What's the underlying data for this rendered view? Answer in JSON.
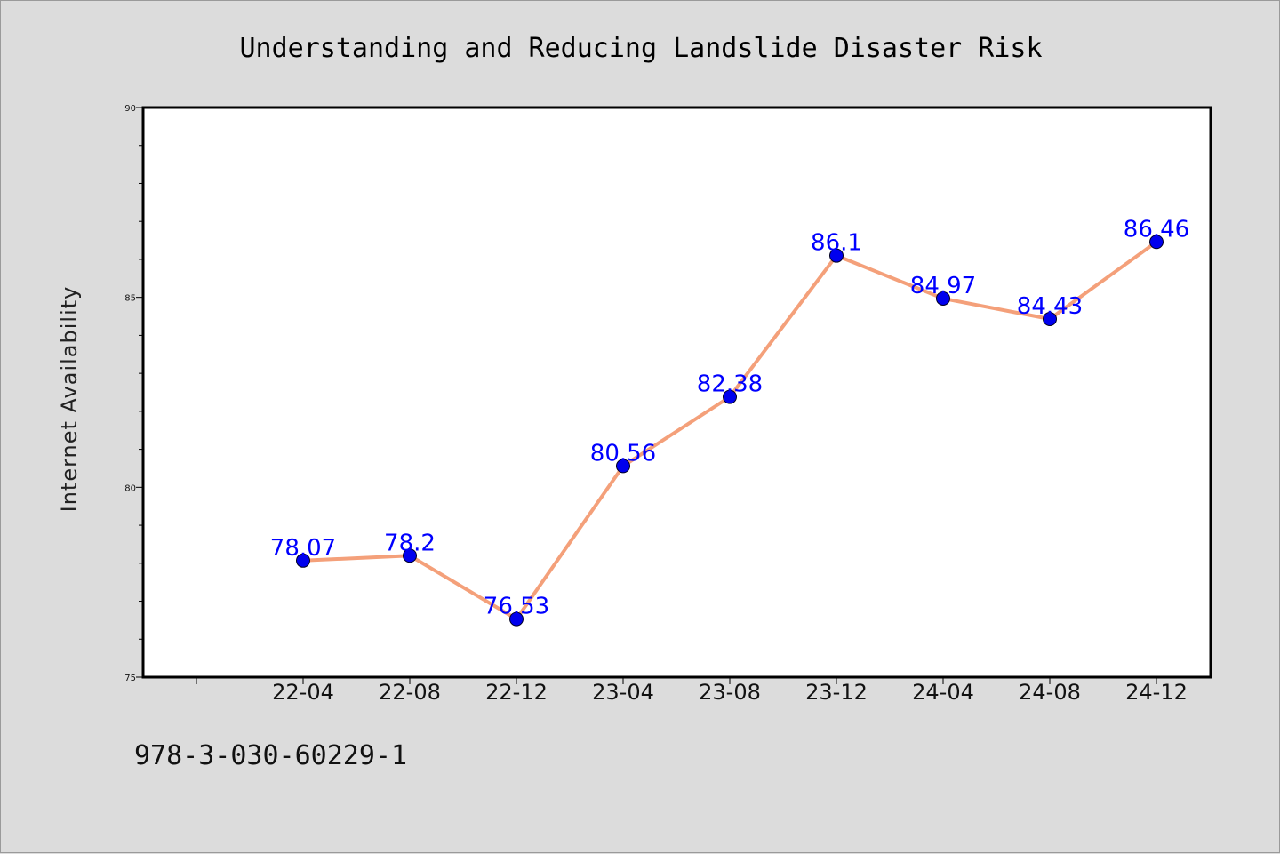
{
  "chart_data": {
    "type": "line",
    "title": "Understanding and Reducing Landslide Disaster Risk",
    "xlabel": "",
    "ylabel": "Internet Availability",
    "categories": [
      "22-04",
      "22-08",
      "22-12",
      "23-04",
      "23-08",
      "23-12",
      "24-04",
      "24-08",
      "24-12"
    ],
    "series": [
      {
        "values": [
          78.07,
          78.2,
          76.53,
          80.56,
          82.38,
          86.1,
          84.97,
          84.43,
          86.46
        ],
        "labels": [
          "78.07",
          "78.2",
          "76.53",
          "80.56",
          "82.38",
          "86.1",
          "84.97",
          "84.43",
          "86.46"
        ],
        "line_color": "#f4a07a",
        "marker_color": "#0000ee"
      }
    ],
    "ylim": [
      75,
      90
    ],
    "yticks": [
      "75",
      "80",
      "85",
      "90"
    ],
    "grid": false,
    "legend": "none"
  },
  "footer": {
    "identifier": "978-3-030-60229-1"
  },
  "colors": {
    "background": "#dcdcdc",
    "plot_background": "#ffffff",
    "data_label": "#0000ff"
  }
}
